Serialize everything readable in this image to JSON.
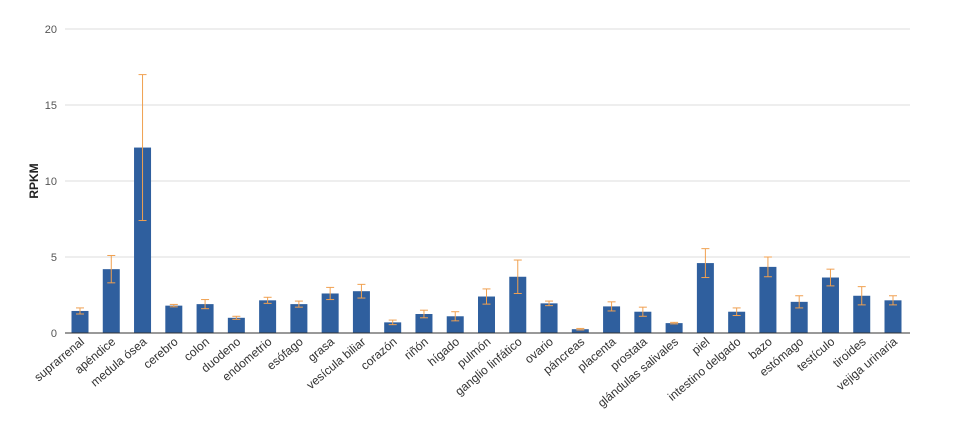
{
  "chart_data": {
    "type": "bar",
    "title": "",
    "xlabel": "",
    "ylabel": "RPKM",
    "ylim": [
      0,
      20
    ],
    "yticks": [
      0,
      5,
      10,
      15,
      20
    ],
    "grid": true,
    "colors": {
      "bar": "#2f5f9e",
      "error": "#f0a050",
      "grid": "#dddddd",
      "axis": "#333333"
    },
    "categories": [
      "suprarrenal",
      "apéndice",
      "medula ósea",
      "cerebro",
      "colon",
      "duodeno",
      "endometrio",
      "esófago",
      "grasa",
      "vesícula biliar",
      "corazón",
      "riñón",
      "hígado",
      "pulmón",
      "ganglio linfático",
      "ovario",
      "páncreas",
      "placenta",
      "prostata",
      "glándulas salivales",
      "piel",
      "intestino delgado",
      "bazo",
      "estómago",
      "testículo",
      "tiroides",
      "vejiga urinaria"
    ],
    "values": [
      1.45,
      4.2,
      12.2,
      1.8,
      1.9,
      1.0,
      2.15,
      1.9,
      2.6,
      2.75,
      0.7,
      1.25,
      1.1,
      2.4,
      3.7,
      1.95,
      0.25,
      1.75,
      1.4,
      0.65,
      4.6,
      1.4,
      4.35,
      2.05,
      3.65,
      2.45,
      2.15
    ],
    "errors": [
      0.2,
      0.9,
      4.8,
      0.08,
      0.3,
      0.1,
      0.2,
      0.2,
      0.4,
      0.45,
      0.15,
      0.25,
      0.3,
      0.5,
      1.1,
      0.15,
      0.05,
      0.3,
      0.3,
      0.05,
      0.95,
      0.25,
      0.65,
      0.4,
      0.55,
      0.6,
      0.3
    ]
  }
}
